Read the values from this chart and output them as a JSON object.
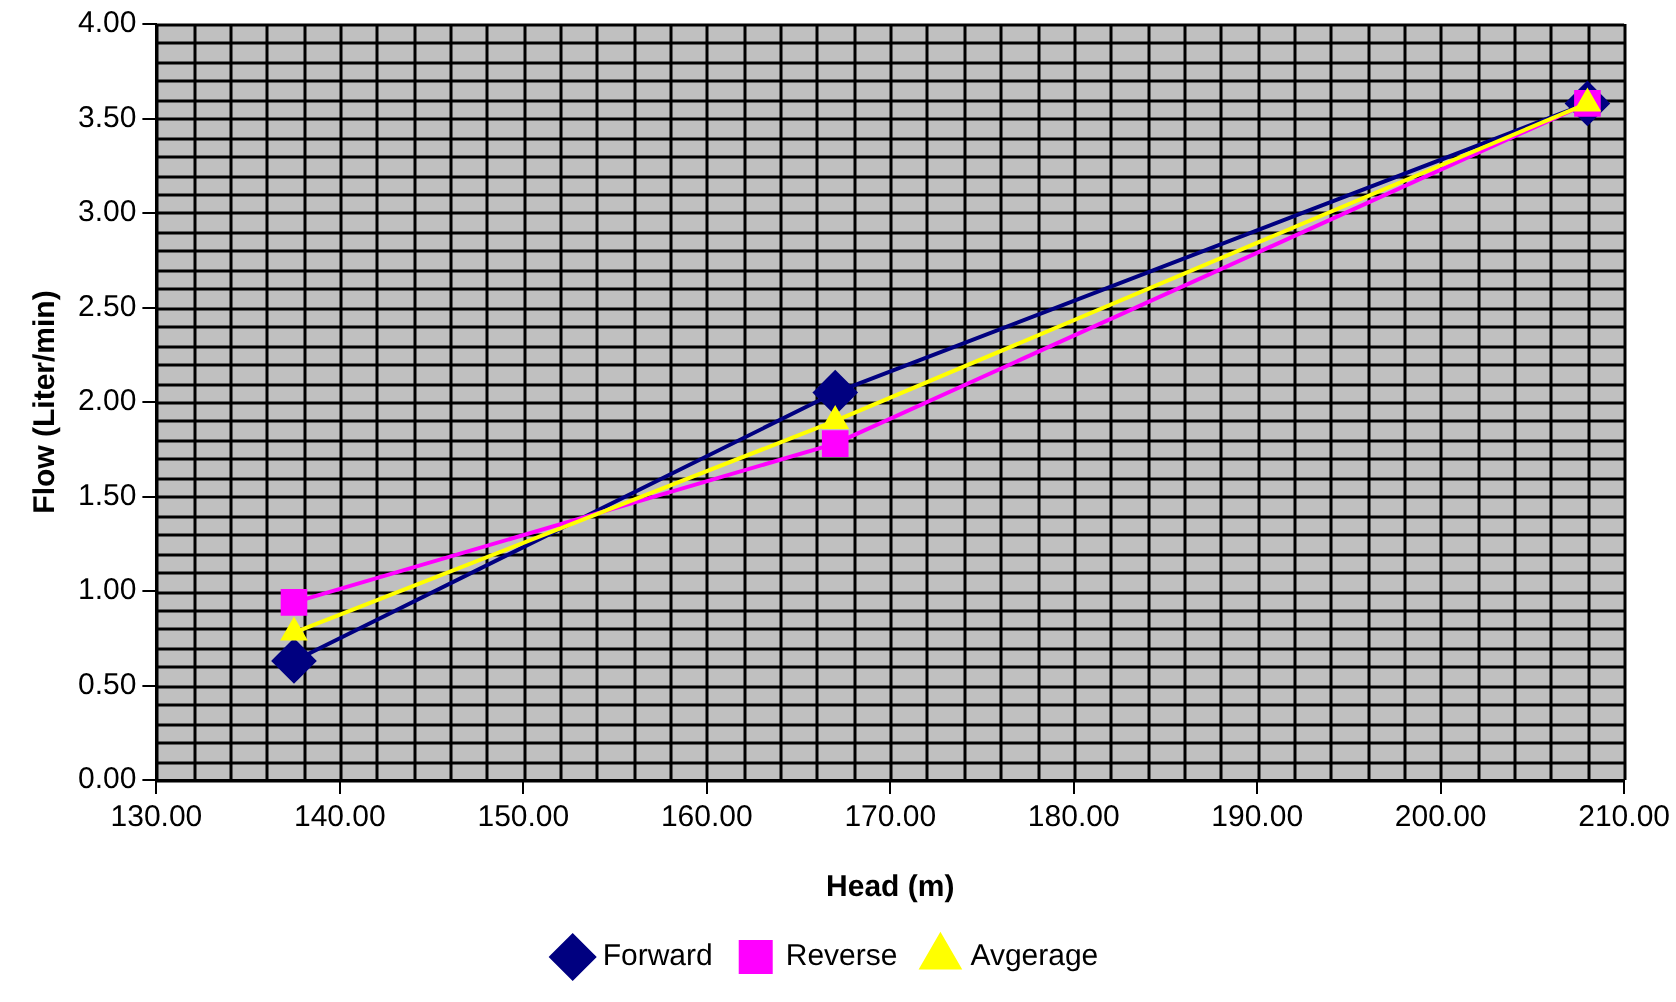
{
  "chart_data": {
    "type": "line",
    "xlabel": "Head (m)",
    "ylabel": "Flow (Liter/min)",
    "xlim": [
      130,
      210
    ],
    "ylim": [
      0,
      4
    ],
    "xticks": [
      {
        "value": 130,
        "label": "130.00"
      },
      {
        "value": 140,
        "label": "140.00"
      },
      {
        "value": 150,
        "label": "150.00"
      },
      {
        "value": 160,
        "label": "160.00"
      },
      {
        "value": 170,
        "label": "170.00"
      },
      {
        "value": 180,
        "label": "180.00"
      },
      {
        "value": 190,
        "label": "190.00"
      },
      {
        "value": 200,
        "label": "200.00"
      },
      {
        "value": 210,
        "label": "210.00"
      }
    ],
    "yticks": [
      {
        "value": 0,
        "label": "0.00"
      },
      {
        "value": 0.5,
        "label": "0.50"
      },
      {
        "value": 1,
        "label": "1.00"
      },
      {
        "value": 1.5,
        "label": "1.50"
      },
      {
        "value": 2,
        "label": "2.00"
      },
      {
        "value": 2.5,
        "label": "2.50"
      },
      {
        "value": 3,
        "label": "3.00"
      },
      {
        "value": 3.5,
        "label": "3.50"
      },
      {
        "value": 4,
        "label": "4.00"
      }
    ],
    "x": [
      137.5,
      167,
      208
    ],
    "series": [
      {
        "name": "Forward",
        "color": "#000080",
        "values": [
          0.63,
          2.05,
          3.58
        ],
        "marker": "diamond"
      },
      {
        "name": "Reverse",
        "color": "#ff00ff",
        "values": [
          0.94,
          1.78,
          3.58
        ],
        "marker": "square"
      },
      {
        "name": "Avgerage",
        "color": "#ffff00",
        "values": [
          0.78,
          1.9,
          3.58
        ],
        "marker": "triangle"
      }
    ],
    "grid": true,
    "legend": "bottom",
    "line_style": "solid"
  }
}
